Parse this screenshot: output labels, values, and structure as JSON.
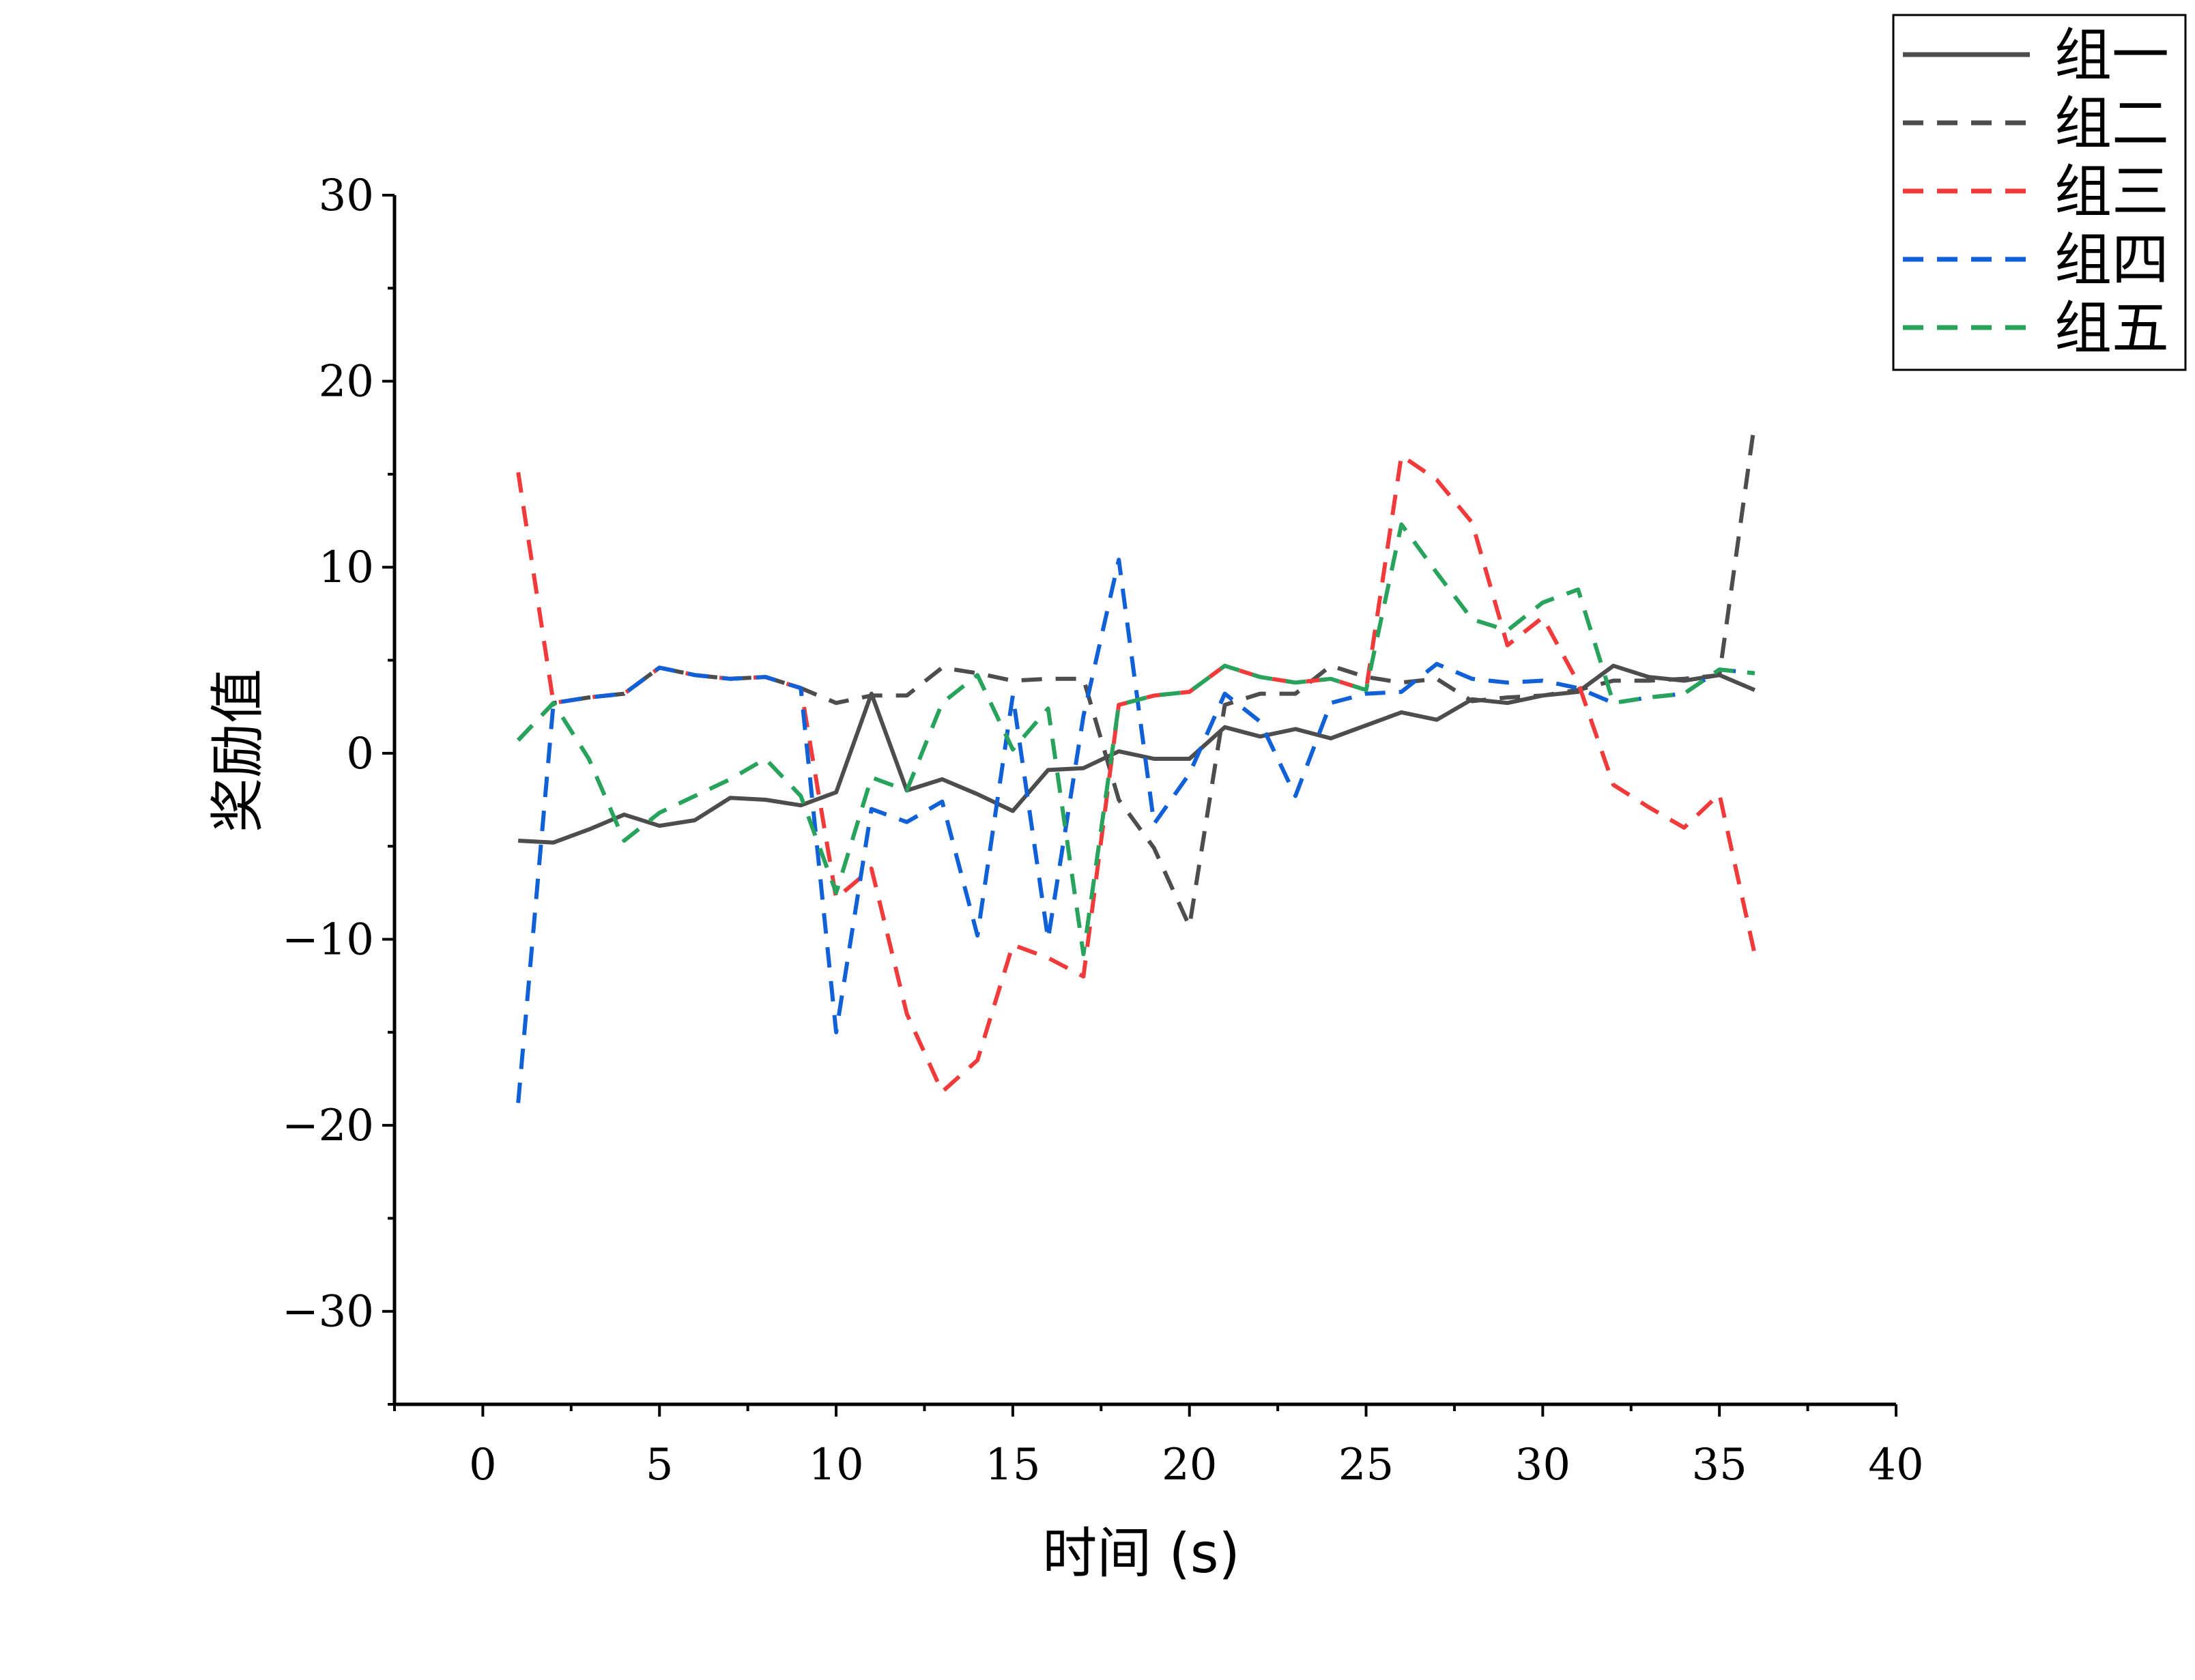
{
  "chart_data": {
    "type": "line",
    "xlabel": "时间 (s)",
    "ylabel": "奖励值",
    "xlim": [
      -2.5,
      40
    ],
    "ylim": [
      -35,
      30
    ],
    "xticks": [
      0,
      5,
      10,
      15,
      20,
      25,
      30,
      35,
      40
    ],
    "yticks": [
      30,
      20,
      10,
      0,
      -10,
      -20,
      -30
    ],
    "xtick_labels": [
      "0",
      "5",
      "10",
      "15",
      "20",
      "25",
      "30",
      "35",
      "40"
    ],
    "ytick_labels": [
      "30",
      "20",
      "10",
      "0",
      "−10",
      "−20",
      "−30"
    ],
    "grid": false,
    "legend_position": "top-right",
    "x": [
      1,
      2,
      3,
      4,
      5,
      6,
      7,
      8,
      9,
      10,
      11,
      12,
      13,
      14,
      15,
      16,
      17,
      18,
      19,
      20,
      21,
      22,
      23,
      24,
      25,
      26,
      27,
      28,
      29,
      30,
      31,
      32,
      33,
      34,
      35,
      36
    ],
    "series": [
      {
        "name": "组一",
        "color": "#4d4d4d",
        "dash": "solid",
        "values": [
          -4.7,
          -4.8,
          -4.1,
          -3.3,
          -3.9,
          -3.6,
          -2.4,
          -2.5,
          -2.8,
          -2.1,
          3.2,
          -2.0,
          -1.4,
          -2.2,
          -3.1,
          -0.9,
          -0.8,
          0.1,
          -0.3,
          -0.3,
          1.4,
          0.9,
          1.3,
          0.8,
          1.5,
          2.2,
          1.8,
          2.9,
          2.7,
          3.1,
          3.3,
          4.7,
          4.1,
          3.9,
          4.2,
          3.4
        ]
      },
      {
        "name": "组二",
        "color": "#4d4d4d",
        "dash": "dash",
        "values": [
          0.7,
          2.7,
          3.0,
          3.2,
          4.6,
          4.2,
          4.0,
          4.1,
          3.5,
          2.7,
          3.1,
          3.1,
          4.6,
          4.3,
          3.9,
          4.0,
          4.0,
          -2.5,
          -5.1,
          -9.3,
          2.6,
          3.2,
          3.2,
          4.7,
          4.1,
          3.8,
          4.0,
          2.8,
          3.0,
          3.1,
          3.4,
          3.9,
          3.9,
          4.0,
          4.2,
          17.8
        ]
      },
      {
        "name": "组三",
        "color": "#f23a3a",
        "dash": "dash",
        "values": [
          15.1,
          2.7,
          3.0,
          3.2,
          4.6,
          4.2,
          4.0,
          4.1,
          3.5,
          -7.8,
          -6.2,
          -14.0,
          -18.2,
          -16.5,
          -10.3,
          -11.0,
          -12.0,
          2.6,
          3.1,
          3.3,
          4.7,
          4.1,
          3.8,
          4.0,
          3.4,
          16.0,
          14.7,
          12.4,
          5.8,
          7.3,
          3.8,
          -1.7,
          -2.9,
          -4.0,
          -2.2,
          -10.8
        ]
      },
      {
        "name": "组四",
        "color": "#1060d8",
        "dash": "dash",
        "values": [
          -18.8,
          2.7,
          3.0,
          3.2,
          4.6,
          4.2,
          4.0,
          4.1,
          3.5,
          -15.0,
          -3.0,
          -3.7,
          -2.6,
          -9.8,
          3.1,
          -10.0,
          2.0,
          10.4,
          -3.8,
          -1.1,
          3.2,
          1.7,
          -2.3,
          2.7,
          3.2,
          3.3,
          4.8,
          4.0,
          3.8,
          3.9,
          3.5,
          2.7,
          3.0,
          3.2,
          4.5,
          4.3
        ]
      },
      {
        "name": "组五",
        "color": "#27a35b",
        "dash": "dash",
        "values": [
          0.7,
          2.7,
          -0.3,
          -4.7,
          -3.2,
          -2.3,
          -1.4,
          -0.3,
          -2.3,
          -7.5,
          -1.3,
          -2.0,
          2.7,
          4.2,
          0.2,
          2.4,
          -10.8,
          2.6,
          3.1,
          3.3,
          4.7,
          4.1,
          3.8,
          4.0,
          3.4,
          12.3,
          9.7,
          7.2,
          6.6,
          8.1,
          8.8,
          2.7,
          3.0,
          3.2,
          4.5,
          4.3
        ]
      }
    ]
  }
}
